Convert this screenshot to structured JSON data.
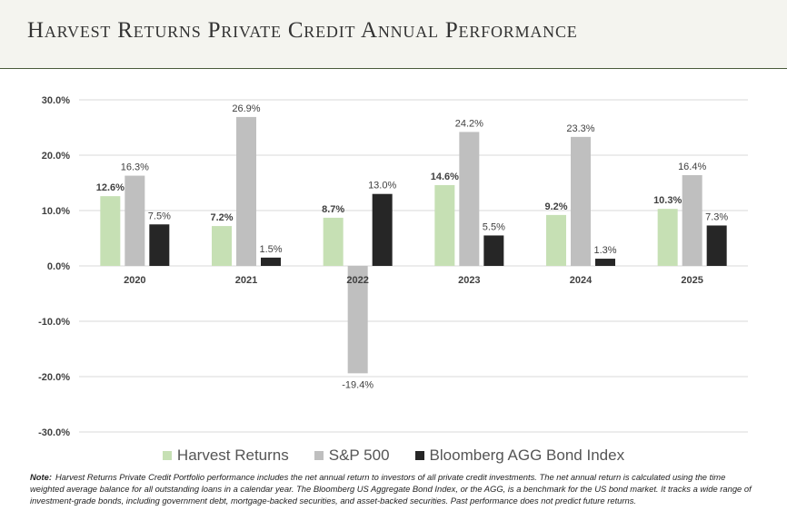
{
  "header": {
    "title": "Harvest Returns Private Credit Annual Performance"
  },
  "chart_data": {
    "type": "bar",
    "categories": [
      "2020",
      "2021",
      "2022",
      "2023",
      "2024",
      "2025"
    ],
    "series": [
      {
        "name": "Harvest Returns",
        "color": "#c6e0b4",
        "values": [
          12.6,
          7.2,
          8.7,
          14.6,
          9.2,
          10.3
        ],
        "labels": [
          "12.6%",
          "7.2%",
          "8.7%",
          "14.6%",
          "9.2%",
          "10.3%"
        ],
        "label_bold": true
      },
      {
        "name": "S&P 500",
        "color": "#bfbfbf",
        "values": [
          16.3,
          26.9,
          -19.4,
          24.2,
          23.3,
          16.4
        ],
        "labels": [
          "16.3%",
          "26.9%",
          "-19.4%",
          "24.2%",
          "23.3%",
          "16.4%"
        ],
        "label_bold": false
      },
      {
        "name": "Bloomberg AGG Bond Index",
        "color": "#262626",
        "values": [
          7.5,
          1.5,
          13.0,
          5.5,
          1.3,
          7.3
        ],
        "labels": [
          "7.5%",
          "1.5%",
          "13.0%",
          "5.5%",
          "1.3%",
          "7.3%"
        ],
        "label_bold": false
      }
    ],
    "y_ticks": [
      30,
      20,
      10,
      0,
      -10,
      -20,
      -30
    ],
    "y_tick_labels": [
      "30.0%",
      "20.0%",
      "10.0%",
      "0.0%",
      "-10.0%",
      "-20.0%",
      "-30.0%"
    ],
    "ylim": [
      -30,
      30
    ],
    "grid": true,
    "legend_position": "bottom"
  },
  "note": {
    "label": "Note:",
    "text": "Harvest Returns Private Credit Portfolio performance includes the net annual return to investors of all private credit investments. The net annual return is calculated using the time weighted average balance for all outstanding loans in a calendar year. The Bloomberg US Aggregate Bond Index, or the AGG, is a benchmark for the US bond market. It tracks a wide range of investment-grade bonds, including government debt, mortgage-backed securities, and asset-backed securities. Past performance does not predict future returns."
  }
}
